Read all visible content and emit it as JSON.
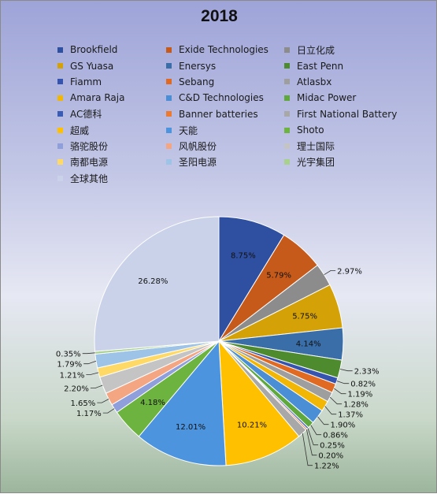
{
  "chart_data": {
    "type": "pie",
    "title": "2018",
    "legend_position": "top",
    "series": [
      {
        "name": "Brookfield",
        "value": 8.75,
        "color": "#2f4fa0"
      },
      {
        "name": "Exide Technologies",
        "value": 5.79,
        "color": "#c55a1b"
      },
      {
        "name": "日立化成",
        "value": 2.97,
        "color": "#8c8c8c"
      },
      {
        "name": "GS Yuasa",
        "value": 5.75,
        "color": "#d4a106"
      },
      {
        "name": "Enersys",
        "value": 4.14,
        "color": "#3a6ea8"
      },
      {
        "name": "East Penn",
        "value": 2.33,
        "color": "#4e8a2e"
      },
      {
        "name": "Fiamm",
        "value": 0.82,
        "color": "#3554b0"
      },
      {
        "name": "Sebang",
        "value": 1.19,
        "color": "#e06a22"
      },
      {
        "name": "Atlasbx",
        "value": 1.28,
        "color": "#9e9e9e"
      },
      {
        "name": "Amara Raja",
        "value": 1.37,
        "color": "#f2b705"
      },
      {
        "name": "C&D Technologies",
        "value": 1.9,
        "color": "#4a8fd6"
      },
      {
        "name": "Midac Power",
        "value": 0.86,
        "color": "#5fa83c"
      },
      {
        "name": "AC德科",
        "value": 0.25,
        "color": "#3a5cb5"
      },
      {
        "name": "Banner batteries",
        "value": 0.2,
        "color": "#ee7a2f"
      },
      {
        "name": "First National Battery",
        "value": 1.22,
        "color": "#a8a8a8"
      },
      {
        "name": "超威",
        "value": 10.21,
        "color": "#ffc000"
      },
      {
        "name": "天能",
        "value": 12.01,
        "color": "#4d94de"
      },
      {
        "name": "Shoto",
        "value": 4.18,
        "color": "#6db33f"
      },
      {
        "name": "骆驼股份",
        "value": 1.17,
        "color": "#8f9fdc"
      },
      {
        "name": "风帆股份",
        "value": 1.65,
        "color": "#f4a582"
      },
      {
        "name": "理士国际",
        "value": 2.2,
        "color": "#c4c4c4"
      },
      {
        "name": "南都电源",
        "value": 1.21,
        "color": "#ffd966"
      },
      {
        "name": "圣阳电源",
        "value": 1.79,
        "color": "#9dc3e6"
      },
      {
        "name": "光宇集团",
        "value": 0.35,
        "color": "#a9d18e"
      },
      {
        "name": "全球其他",
        "value": 26.28,
        "color": "#c9d2e8"
      }
    ],
    "label_format": "{value}%"
  }
}
